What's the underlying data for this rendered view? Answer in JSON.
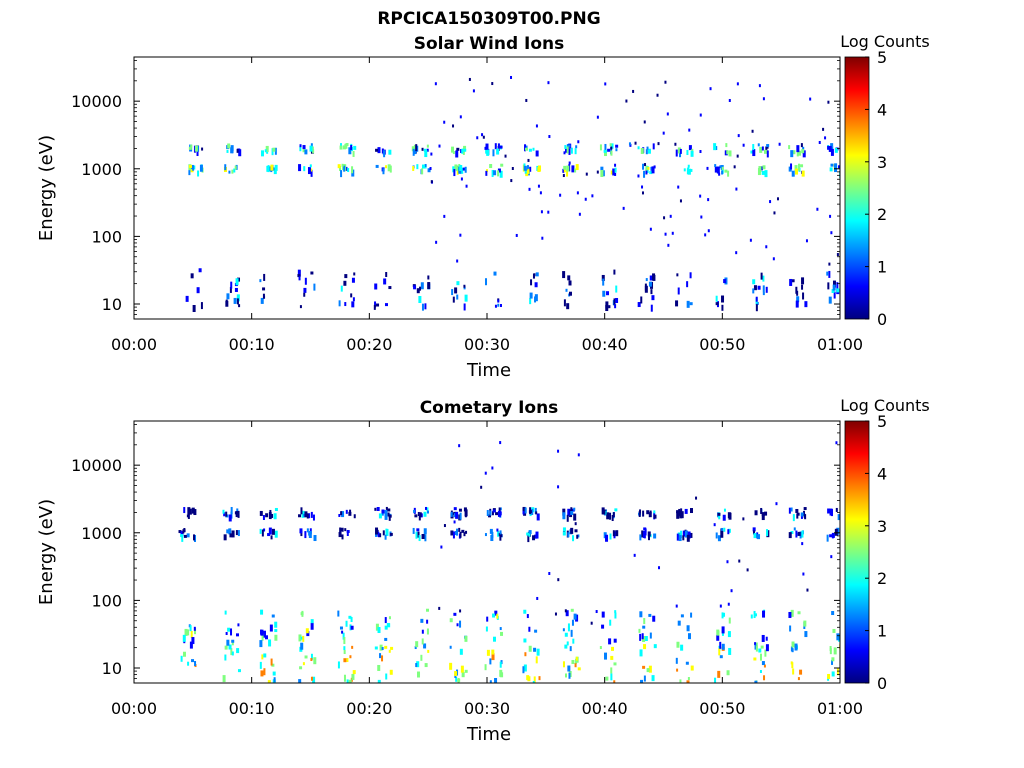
{
  "figure": {
    "title": "RPCICA150309T00.PNG"
  },
  "colormap": [
    "#00007f",
    "#0000ff",
    "#007fff",
    "#00ffff",
    "#7fff7f",
    "#ffff00",
    "#ff7f00",
    "#ff0000",
    "#7f0000"
  ],
  "chart_data": [
    {
      "type": "heatmap",
      "title": "Solar Wind Ions",
      "xlabel": "Time",
      "ylabel": "Energy (eV)",
      "x_ticks": [
        "00:00",
        "00:10",
        "00:20",
        "00:30",
        "00:40",
        "00:50",
        "01:00"
      ],
      "x_tick_minutes": [
        0,
        10,
        20,
        30,
        40,
        50,
        60
      ],
      "xlim_minutes": [
        0,
        60
      ],
      "y_scale": "log",
      "ylim_eV": [
        6,
        45000
      ],
      "y_ticks": [
        "10",
        "100",
        "1000",
        "10000"
      ],
      "y_tick_values": [
        10,
        100,
        1000,
        10000
      ],
      "colorbar": {
        "label": "Log Counts",
        "ticks": [
          "0",
          "1",
          "2",
          "3",
          "4",
          "5"
        ],
        "range": [
          0,
          5
        ]
      },
      "ion_bands": [
        {
          "energy_eV": 1050,
          "level": 1.2
        },
        {
          "energy_eV": 2100,
          "level": 0.9
        },
        {
          "energy_eV": 18,
          "level": 0.3
        }
      ],
      "scan_bursts_minutes": [
        4.8,
        7.9,
        11.0,
        14.3,
        17.7,
        20.8,
        24.0,
        27.2,
        30.2,
        33.4,
        36.8,
        40.0,
        43.2,
        46.4,
        49.6,
        52.8,
        56.0,
        59.2
      ]
    },
    {
      "type": "heatmap",
      "title": "Cometary Ions",
      "xlabel": "Time",
      "ylabel": "Energy (eV)",
      "x_ticks": [
        "00:00",
        "00:10",
        "00:20",
        "00:30",
        "00:40",
        "00:50",
        "01:00"
      ],
      "x_tick_minutes": [
        0,
        10,
        20,
        30,
        40,
        50,
        60
      ],
      "xlim_minutes": [
        0,
        60
      ],
      "y_scale": "log",
      "ylim_eV": [
        6,
        45000
      ],
      "y_ticks": [
        "10",
        "100",
        "1000",
        "10000"
      ],
      "y_tick_values": [
        10,
        100,
        1000,
        10000
      ],
      "colorbar": {
        "label": "Log Counts",
        "ticks": [
          "0",
          "1",
          "2",
          "3",
          "4",
          "5"
        ],
        "range": [
          0,
          5
        ]
      },
      "ion_bands": [
        {
          "energy_eV": 12,
          "level": 1.6
        },
        {
          "energy_eV": 40,
          "level": 1.0
        },
        {
          "energy_eV": 1050,
          "level": 0.4
        },
        {
          "energy_eV": 2100,
          "level": 0.3
        }
      ],
      "scan_bursts_minutes": [
        4.2,
        7.9,
        11.0,
        14.3,
        17.7,
        20.8,
        24.0,
        27.2,
        30.2,
        33.4,
        36.8,
        40.0,
        43.2,
        46.4,
        49.6,
        52.8,
        56.0,
        59.2
      ]
    }
  ]
}
